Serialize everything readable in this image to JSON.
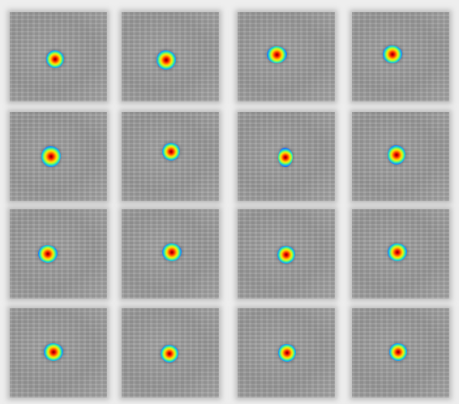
{
  "image": {
    "background": "#eeeeee",
    "grid": {
      "rows": 4,
      "cols": 4
    },
    "colormap": [
      "#0a0f7a",
      "#1a2fd6",
      "#1f7dff",
      "#1ed9c8",
      "#8cff4a",
      "#ffe600",
      "#ff9a00",
      "#ff3a00",
      "#d40000",
      "#7a0000"
    ],
    "spots": [
      {
        "row": 1,
        "col": 1,
        "shape": "round"
      },
      {
        "row": 1,
        "col": 2,
        "shape": "round"
      },
      {
        "row": 1,
        "col": 3,
        "shape": "round"
      },
      {
        "row": 1,
        "col": 4,
        "shape": "round"
      },
      {
        "row": 2,
        "col": 1,
        "shape": "round"
      },
      {
        "row": 2,
        "col": 2,
        "shape": "round"
      },
      {
        "row": 2,
        "col": 3,
        "shape": "elongated"
      },
      {
        "row": 2,
        "col": 4,
        "shape": "round"
      },
      {
        "row": 3,
        "col": 1,
        "shape": "round"
      },
      {
        "row": 3,
        "col": 2,
        "shape": "round"
      },
      {
        "row": 3,
        "col": 3,
        "shape": "round"
      },
      {
        "row": 3,
        "col": 4,
        "shape": "round"
      },
      {
        "row": 4,
        "col": 1,
        "shape": "round"
      },
      {
        "row": 4,
        "col": 2,
        "shape": "round"
      },
      {
        "row": 4,
        "col": 3,
        "shape": "round"
      },
      {
        "row": 4,
        "col": 4,
        "shape": "round"
      }
    ]
  }
}
